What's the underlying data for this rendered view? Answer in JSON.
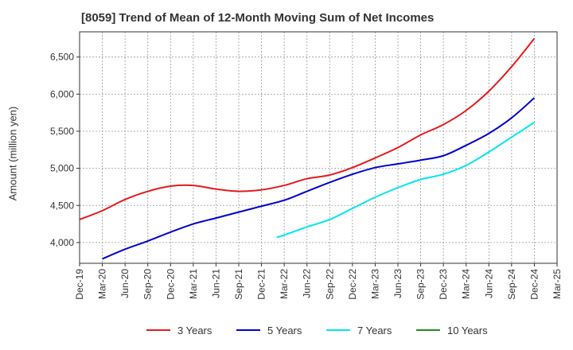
{
  "chart_data": {
    "type": "line",
    "title": "[8059]  Trend of Mean of 12-Month Moving Sum of Net Incomes",
    "xlabel": "",
    "ylabel": "Amount (million yen)",
    "ylim": [
      3720,
      6840
    ],
    "yticks": [
      4000,
      4500,
      5000,
      5500,
      6000,
      6500
    ],
    "ytick_labels": [
      "4,000",
      "4,500",
      "5,000",
      "5,500",
      "6,000",
      "6,500"
    ],
    "x_ticks": [
      "Dec-19",
      "Mar-20",
      "Jun-20",
      "Sep-20",
      "Dec-20",
      "Mar-21",
      "Jun-21",
      "Sep-21",
      "Dec-21",
      "Mar-22",
      "Jun-22",
      "Sep-22",
      "Dec-22",
      "Mar-23",
      "Jun-23",
      "Sep-23",
      "Dec-23",
      "Mar-24",
      "Jun-24",
      "Sep-24",
      "Dec-24",
      "Mar-25"
    ],
    "grid": true,
    "legend_position": "bottom",
    "series": [
      {
        "name": "3 Years",
        "color": "#e41a1c",
        "points": [
          [
            0,
            4310
          ],
          [
            1,
            4430
          ],
          [
            2,
            4580
          ],
          [
            3,
            4690
          ],
          [
            4,
            4760
          ],
          [
            5,
            4770
          ],
          [
            6,
            4720
          ],
          [
            7,
            4690
          ],
          [
            8,
            4710
          ],
          [
            9,
            4770
          ],
          [
            10,
            4860
          ],
          [
            11,
            4910
          ],
          [
            12,
            5010
          ],
          [
            13,
            5140
          ],
          [
            14,
            5280
          ],
          [
            15,
            5450
          ],
          [
            16,
            5590
          ],
          [
            17,
            5780
          ],
          [
            18,
            6040
          ],
          [
            19,
            6370
          ],
          [
            20,
            6750
          ]
        ]
      },
      {
        "name": "5 Years",
        "color": "#0000cc",
        "points": [
          [
            1,
            3780
          ],
          [
            2,
            3910
          ],
          [
            3,
            4020
          ],
          [
            4,
            4140
          ],
          [
            5,
            4250
          ],
          [
            6,
            4330
          ],
          [
            7,
            4410
          ],
          [
            8,
            4490
          ],
          [
            9,
            4570
          ],
          [
            10,
            4690
          ],
          [
            11,
            4810
          ],
          [
            12,
            4920
          ],
          [
            13,
            5010
          ],
          [
            14,
            5060
          ],
          [
            15,
            5110
          ],
          [
            16,
            5170
          ],
          [
            17,
            5310
          ],
          [
            18,
            5470
          ],
          [
            19,
            5680
          ],
          [
            20,
            5950
          ]
        ]
      },
      {
        "name": "7 Years",
        "color": "#00e5ee",
        "points": [
          [
            8.67,
            4070
          ],
          [
            9,
            4100
          ],
          [
            10,
            4210
          ],
          [
            11,
            4310
          ],
          [
            12,
            4460
          ],
          [
            13,
            4610
          ],
          [
            14,
            4740
          ],
          [
            15,
            4850
          ],
          [
            16,
            4920
          ],
          [
            17,
            5040
          ],
          [
            18,
            5220
          ],
          [
            19,
            5420
          ],
          [
            20,
            5620
          ]
        ]
      },
      {
        "name": "10 Years",
        "color": "#228b22",
        "points": []
      }
    ]
  }
}
